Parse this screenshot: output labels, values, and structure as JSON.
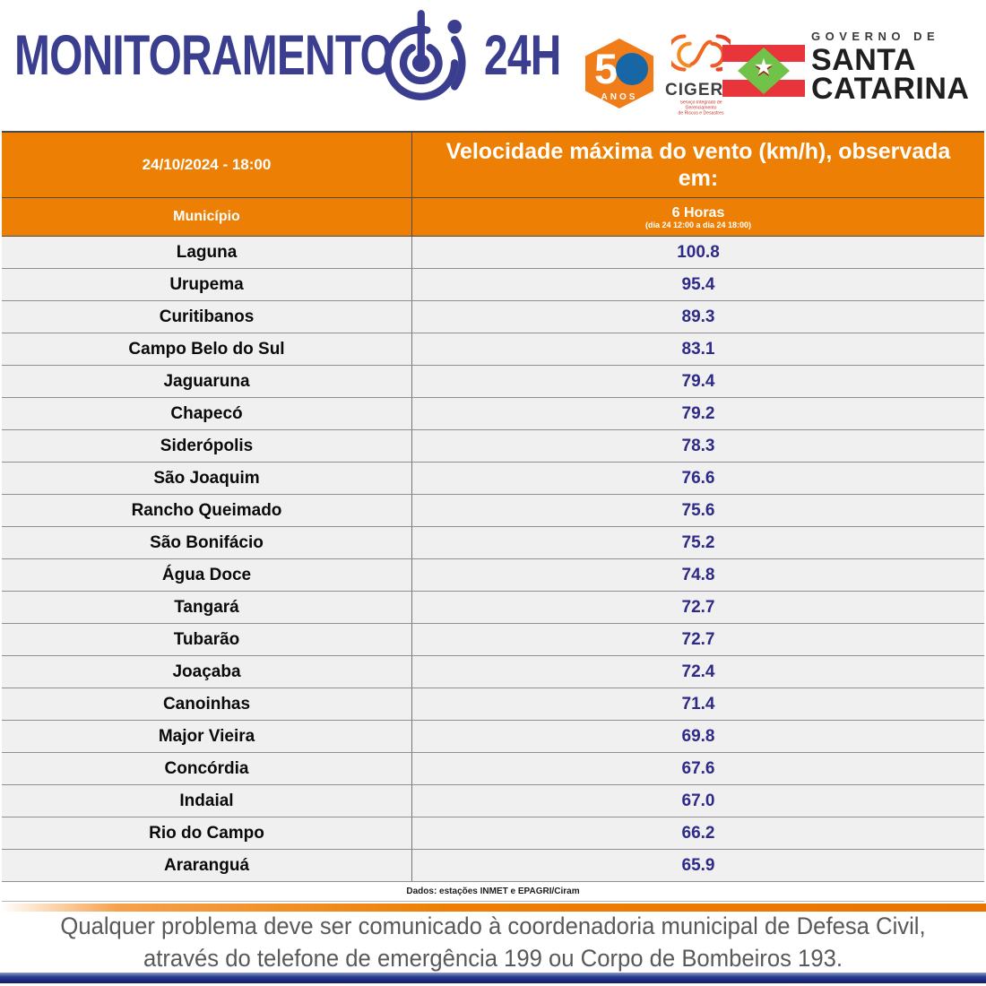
{
  "header": {
    "brand_title": "MONITORAMENTO",
    "brand_suffix": "24H",
    "badge50": {
      "digit5": "5",
      "anos_label": "ANOS"
    },
    "cigerd": {
      "name": "CIGERD",
      "subtitle_line1": "Serviço Integrado de Gerenciamento",
      "subtitle_line2": "de Riscos e Desastres"
    },
    "governo": {
      "over_line": "GOVERNO DE",
      "name_line1": "SANTA",
      "name_line2": "CATARINA"
    },
    "flag_star": "★"
  },
  "table": {
    "datetime": "24/10/2024 - 18:00",
    "title": "Velocidade máxima do vento (km/h), observada em:",
    "municipality_header": "Município",
    "period_header": "6 Horas",
    "period_subheader": "(dia 24 12:00 a dia 24 18:00)",
    "rows": [
      {
        "municipality": "Laguna",
        "value": "100.8"
      },
      {
        "municipality": "Urupema",
        "value": "95.4"
      },
      {
        "municipality": "Curitibanos",
        "value": "89.3"
      },
      {
        "municipality": "Campo Belo do Sul",
        "value": "83.1"
      },
      {
        "municipality": "Jaguaruna",
        "value": "79.4"
      },
      {
        "municipality": "Chapecó",
        "value": "79.2"
      },
      {
        "municipality": "Siderópolis",
        "value": "78.3"
      },
      {
        "municipality": "São Joaquim",
        "value": "76.6"
      },
      {
        "municipality": "Rancho Queimado",
        "value": "75.6"
      },
      {
        "municipality": "São Bonifácio",
        "value": "75.2"
      },
      {
        "municipality": "Água Doce",
        "value": "74.8"
      },
      {
        "municipality": "Tangará",
        "value": "72.7"
      },
      {
        "municipality": "Tubarão",
        "value": "72.7"
      },
      {
        "municipality": "Joaçaba",
        "value": "72.4"
      },
      {
        "municipality": "Canoinhas",
        "value": "71.4"
      },
      {
        "municipality": "Major Vieira",
        "value": "69.8"
      },
      {
        "municipality": "Concórdia",
        "value": "67.6"
      },
      {
        "municipality": "Indaial",
        "value": "67.0"
      },
      {
        "municipality": "Rio do Campo",
        "value": "66.2"
      },
      {
        "municipality": "Araranguá",
        "value": "65.9"
      }
    ],
    "source_note": "Dados: estações INMET e EPAGRI/Ciram"
  },
  "footer": {
    "notice_line1": "Qualquer problema deve ser comunicado à coordenadoria municipal de Defesa Civil,",
    "notice_line2": "através do telefone de emergência 199 ou Corpo de Bombeiros 193."
  },
  "colors": {
    "header_orange": "#ED8004",
    "brand_navy": "#3B3E8F",
    "value_navy": "#2E2A87",
    "row_background": "#F0F0F0",
    "footer_text_gray": "#58595B",
    "flag_red": "#E8353B",
    "flag_green": "#71C248"
  },
  "chart_data": {
    "type": "table",
    "title": "Velocidade máxima do vento (km/h), observada em: 6 Horas (dia 24 12:00 a dia 24 18:00)",
    "columns": [
      "Município",
      "6 Horas"
    ],
    "rows": [
      [
        "Laguna",
        100.8
      ],
      [
        "Urupema",
        95.4
      ],
      [
        "Curitibanos",
        89.3
      ],
      [
        "Campo Belo do Sul",
        83.1
      ],
      [
        "Jaguaruna",
        79.4
      ],
      [
        "Chapecó",
        79.2
      ],
      [
        "Siderópolis",
        78.3
      ],
      [
        "São Joaquim",
        76.6
      ],
      [
        "Rancho Queimado",
        75.6
      ],
      [
        "São Bonifácio",
        75.2
      ],
      [
        "Água Doce",
        74.8
      ],
      [
        "Tangará",
        72.7
      ],
      [
        "Tubarão",
        72.7
      ],
      [
        "Joaçaba",
        72.4
      ],
      [
        "Canoinhas",
        71.4
      ],
      [
        "Major Vieira",
        69.8
      ],
      [
        "Concórdia",
        67.6
      ],
      [
        "Indaial",
        67.0
      ],
      [
        "Rio do Campo",
        66.2
      ],
      [
        "Araranguá",
        65.9
      ]
    ]
  }
}
